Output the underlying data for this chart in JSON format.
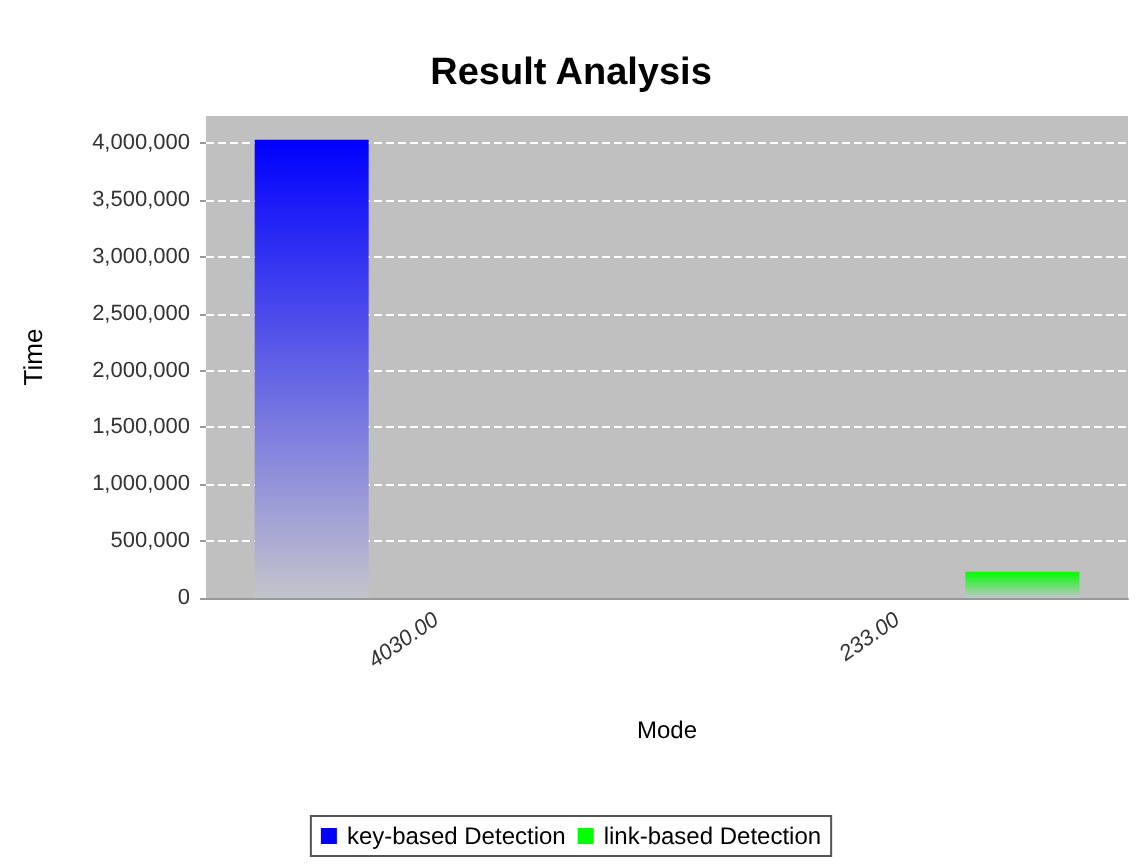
{
  "chart_data": {
    "type": "bar",
    "title": "Result Analysis",
    "xlabel": "Mode",
    "ylabel": "Time",
    "categories": [
      "4030.00",
      "233.00"
    ],
    "series": [
      {
        "name": "key-based Detection",
        "color": "#0000ff",
        "values": [
          4030000,
          null
        ]
      },
      {
        "name": "link-based Detection",
        "color": "#00ff00",
        "values": [
          null,
          230000
        ]
      }
    ],
    "ylim": [
      0,
      4240000
    ],
    "yticks": [
      0,
      {
        "value": 500000,
        "label": "500,000"
      },
      {
        "value": 1000000,
        "label": "1,000,000"
      },
      {
        "value": 1500000,
        "label": "1,500,000"
      },
      {
        "value": 2000000,
        "label": "2,000,000"
      },
      {
        "value": 2500000,
        "label": "2,500,000"
      },
      {
        "value": 3000000,
        "label": "3,000,000"
      },
      {
        "value": 3500000,
        "label": "3,500,000"
      },
      {
        "value": 4000000,
        "label": "4,000,000"
      }
    ],
    "grid": "y",
    "legend": "bottom"
  }
}
